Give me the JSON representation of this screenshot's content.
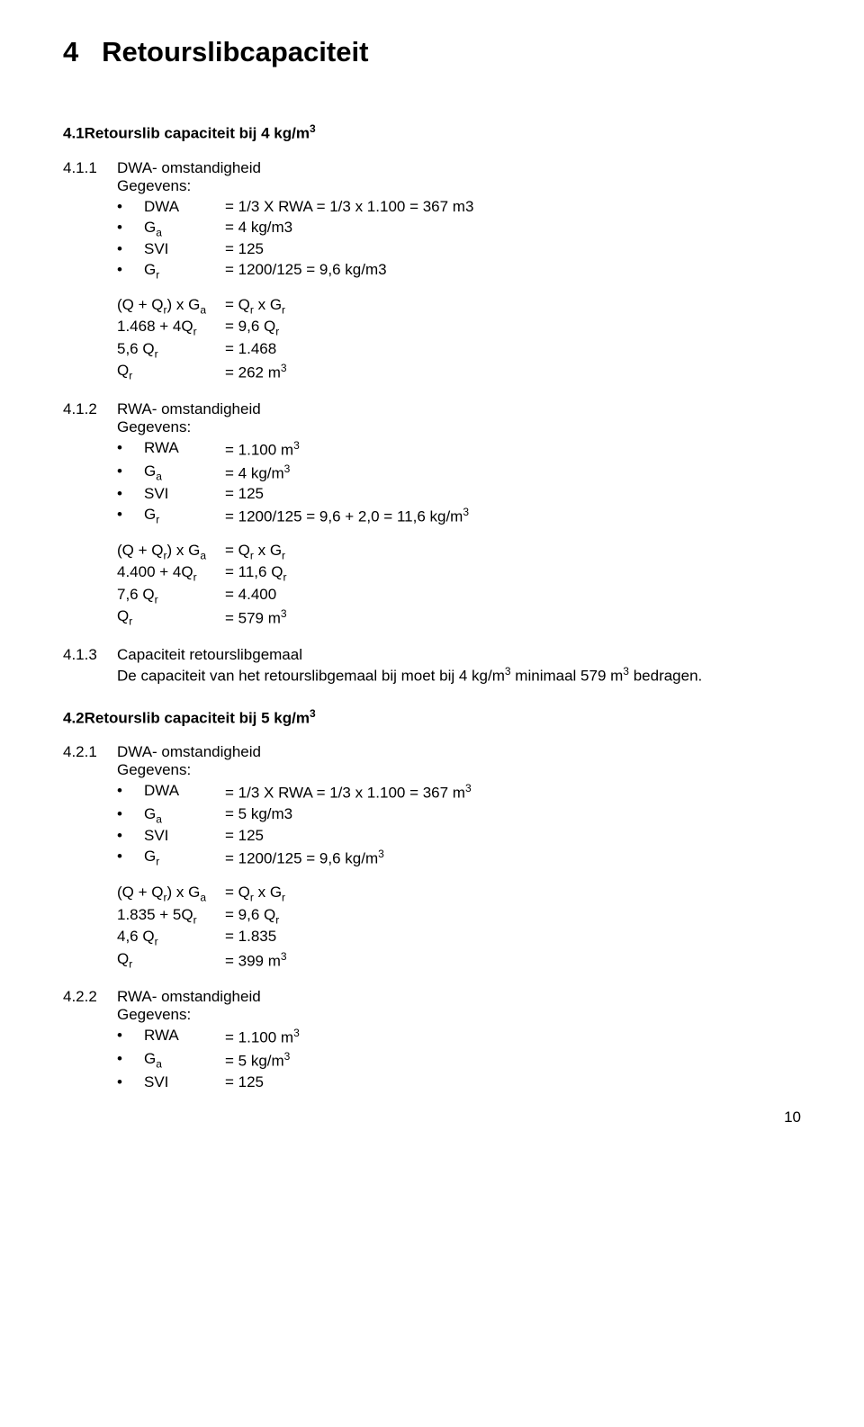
{
  "chapter": {
    "num": "4",
    "title": "Retourslibcapaciteit"
  },
  "s41": {
    "num": "4.1",
    "title": "Retourslib capaciteit bij 4 kg/m",
    "title_sup": "3"
  },
  "s411": {
    "num": "4.1.1",
    "label": "DWA- omstandigheid",
    "gegevens": "Gegevens:",
    "bullets": [
      {
        "var": "DWA",
        "val": "= 1/3 X RWA = 1/3 x 1.100 = 367 m3"
      },
      {
        "var_html": "G<sub>a</sub>",
        "val": "= 4 kg/m3"
      },
      {
        "var": "SVI",
        "val": "= 125"
      },
      {
        "var_html": "G<sub>r</sub>",
        "val": "= 1200/125 = 9,6 kg/m3"
      }
    ],
    "calc": [
      {
        "l_html": "(Q + Q<sub>r</sub>) x G<sub>a</sub>",
        "r_html": "= Q<sub>r</sub> x G<sub>r</sub>"
      },
      {
        "l_html": "1.468 + 4Q<sub>r</sub>",
        "r_html": "= 9,6 Q<sub>r</sub>"
      },
      {
        "l_html": "5,6 Q<sub>r</sub>",
        "r_html": "= 1.468"
      },
      {
        "l_html": "Q<sub>r</sub>",
        "r_html": "= 262 m<sup>3</sup>"
      }
    ]
  },
  "s412": {
    "num": "4.1.2",
    "label": "RWA- omstandigheid",
    "gegevens": "Gegevens:",
    "bullets": [
      {
        "var": "RWA",
        "val_html": "= 1.100 m<sup>3</sup>"
      },
      {
        "var_html": "G<sub>a</sub>",
        "val_html": "= 4 kg/m<sup>3</sup>"
      },
      {
        "var": "SVI",
        "val": "= 125"
      },
      {
        "var_html": "G<sub>r</sub>",
        "val_html": "= 1200/125 = 9,6 + 2,0 = 11,6 kg/m<sup>3</sup>"
      }
    ],
    "calc": [
      {
        "l_html": "(Q + Q<sub>r</sub>) x G<sub>a</sub>",
        "r_html": "= Q<sub>r</sub> x G<sub>r</sub>"
      },
      {
        "l_html": "4.400 + 4Q<sub>r</sub>",
        "r_html": "= 11,6 Q<sub>r</sub>"
      },
      {
        "l_html": "7,6 Q<sub>r</sub>",
        "r_html": "= 4.400"
      },
      {
        "l_html": "Q<sub>r</sub>",
        "r_html": "= 579 m<sup>3</sup>"
      }
    ]
  },
  "s413": {
    "num": "4.1.3",
    "label": "Capaciteit retourslibgemaal",
    "para_html": "De capaciteit van het retourslibgemaal bij moet bij 4 kg/m<sup>3</sup> minimaal 579 m<sup>3</sup> bedragen."
  },
  "s42": {
    "num": "4.2",
    "title": "Retourslib capaciteit bij 5 kg/m",
    "title_sup": "3"
  },
  "s421": {
    "num": "4.2.1",
    "label": "DWA- omstandigheid",
    "gegevens": "Gegevens:",
    "bullets": [
      {
        "var": "DWA",
        "val_html": "= 1/3 X RWA = 1/3 x 1.100 = 367 m<sup>3</sup>"
      },
      {
        "var_html": "G<sub>a</sub>",
        "val": "= 5 kg/m3"
      },
      {
        "var": "SVI",
        "val": "= 125"
      },
      {
        "var_html": "G<sub>r</sub>",
        "val_html": "= 1200/125 = 9,6 kg/m<sup>3</sup>"
      }
    ],
    "calc": [
      {
        "l_html": "(Q + Q<sub>r</sub>) x G<sub>a</sub>",
        "r_html": "= Q<sub>r</sub> x G<sub>r</sub>"
      },
      {
        "l_html": "1.835 + 5Q<sub>r</sub>",
        "r_html": "= 9,6 Q<sub>r</sub>"
      },
      {
        "l_html": "4,6 Q<sub>r</sub>",
        "r_html": "= 1.835"
      },
      {
        "l_html": "Q<sub>r</sub>",
        "r_html": "= 399 m<sup>3</sup>"
      }
    ]
  },
  "s422": {
    "num": "4.2.2",
    "label": "RWA- omstandigheid",
    "gegevens": "Gegevens:",
    "bullets": [
      {
        "var": "RWA",
        "val_html": "= 1.100 m<sup>3</sup>"
      },
      {
        "var_html": "G<sub>a</sub>",
        "val_html": "= 5 kg/m<sup>3</sup>"
      },
      {
        "var": "SVI",
        "val": "= 125"
      }
    ]
  },
  "page_number": "10"
}
